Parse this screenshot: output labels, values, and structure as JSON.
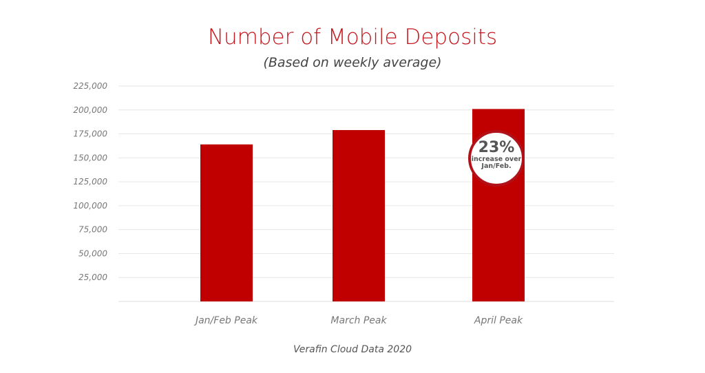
{
  "chart_data": {
    "type": "bar",
    "title": "Number of Mobile Deposits",
    "subtitle": "(Based on weekly average)",
    "categories": [
      "Jan/Feb Peak",
      "March Peak",
      "April Peak"
    ],
    "values": [
      164000,
      179000,
      201000
    ],
    "xlabel": "",
    "ylabel": "",
    "ylim": [
      0,
      225000
    ],
    "yticks": [
      25000,
      50000,
      75000,
      100000,
      125000,
      150000,
      175000,
      200000,
      225000
    ],
    "ytick_labels": [
      "25,000",
      "50,000",
      "75,000",
      "100,000",
      "125,000",
      "150,000",
      "175,000",
      "200,000",
      "225,000"
    ],
    "grid": true,
    "bar_color": "#c00000",
    "annotation": {
      "value": "23%",
      "text_line1": "increase over",
      "text_line2": "Jan/Feb."
    },
    "source": "Verafin Cloud Data 2020"
  }
}
